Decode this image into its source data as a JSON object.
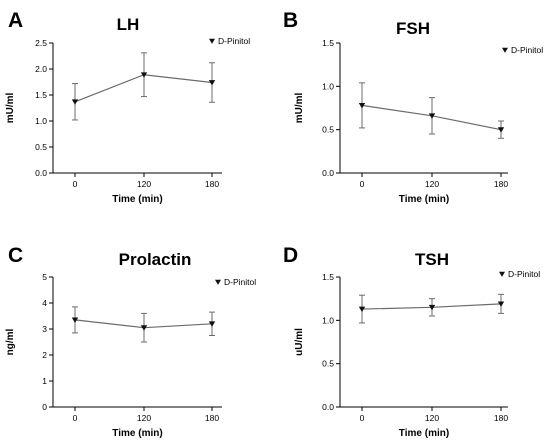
{
  "chart_data": [
    {
      "type": "line",
      "panel": "A",
      "title": "LH",
      "xlabel": "Time (min)",
      "ylabel": "mU/ml",
      "categories": [
        "0",
        "120",
        "180"
      ],
      "yticks": [
        "0.0",
        "0.5",
        "1.0",
        "1.5",
        "2.0",
        "2.5"
      ],
      "ylim": [
        0,
        2.5
      ],
      "grid": false,
      "legend_position": "top-right",
      "series": [
        {
          "name": "D-Pinitol",
          "values": [
            1.37,
            1.89,
            1.74
          ],
          "errors": [
            0.35,
            0.42,
            0.38
          ]
        }
      ]
    },
    {
      "type": "line",
      "panel": "B",
      "title": "FSH",
      "xlabel": "Time (min)",
      "ylabel": "mU/ml",
      "categories": [
        "0",
        "120",
        "180"
      ],
      "yticks": [
        "0.0",
        "0.5",
        "1.0",
        "1.5"
      ],
      "ylim": [
        0,
        1.5
      ],
      "grid": false,
      "legend_position": "top-right",
      "series": [
        {
          "name": "D-Pinitol",
          "values": [
            0.78,
            0.66,
            0.5
          ],
          "errors": [
            0.26,
            0.21,
            0.1
          ]
        }
      ]
    },
    {
      "type": "line",
      "panel": "C",
      "title": "Prolactin",
      "xlabel": "Time (min)",
      "ylabel": "ng/ml",
      "categories": [
        "0",
        "120",
        "180"
      ],
      "yticks": [
        "0",
        "1",
        "2",
        "3",
        "4",
        "5"
      ],
      "ylim": [
        0,
        5
      ],
      "grid": false,
      "legend_position": "top-right",
      "series": [
        {
          "name": "D-Pinitol",
          "values": [
            3.35,
            3.05,
            3.2
          ],
          "errors": [
            0.5,
            0.55,
            0.45
          ]
        }
      ]
    },
    {
      "type": "line",
      "panel": "D",
      "title": "TSH",
      "xlabel": "Time (min)",
      "ylabel": "uU/ml",
      "categories": [
        "0",
        "120",
        "180"
      ],
      "yticks": [
        "0.0",
        "0.5",
        "1.0",
        "1.5"
      ],
      "ylim": [
        0,
        1.5
      ],
      "grid": false,
      "legend_position": "top-right",
      "series": [
        {
          "name": "D-Pinitol",
          "values": [
            1.13,
            1.15,
            1.19
          ],
          "errors": [
            0.16,
            0.1,
            0.11
          ]
        }
      ]
    }
  ],
  "colors": {
    "line": "#6b6b6b",
    "marker": "#111111",
    "axis": "#000000",
    "text": "#000000"
  }
}
